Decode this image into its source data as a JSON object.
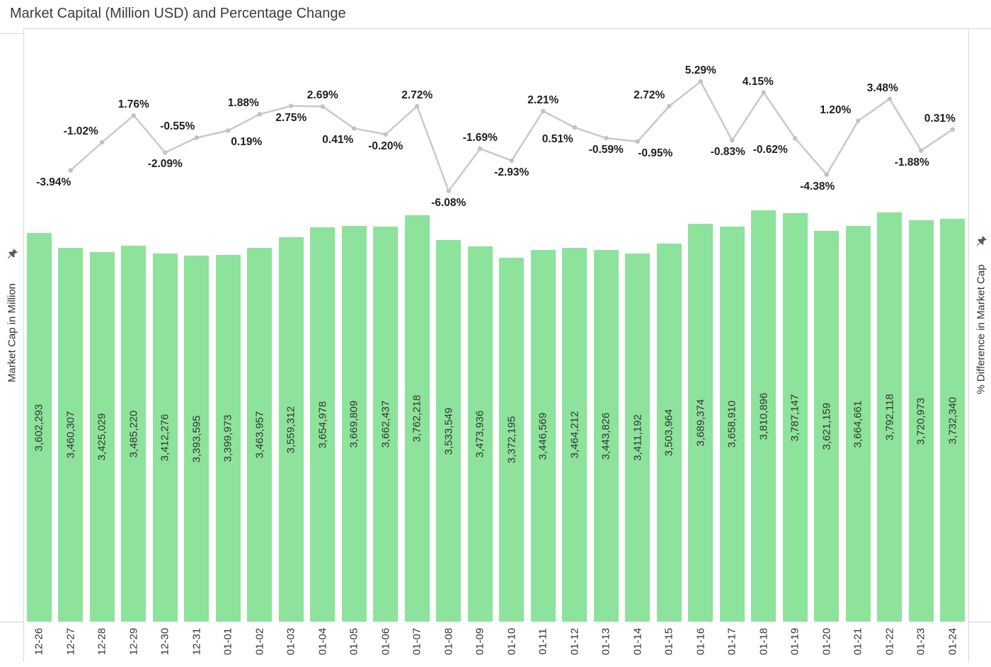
{
  "page_title": "Market Capital (Million USD) and Percentage Change",
  "left_axis": {
    "label": "Market Cap in Million",
    "icon": "pin-icon"
  },
  "right_axis": {
    "label": "% Difference in Market Cap",
    "icon": "pin-icon"
  },
  "colors": {
    "background": "#FFFFFF",
    "title_text": "#3B3B3B",
    "axis_text": "#333333",
    "border": "#D9D9D9",
    "bar_fill": "#8DE39B",
    "bar_label_text": "#333333",
    "line_stroke": "#C9C9C9",
    "marker_fill": "#C2C2C2",
    "pct_label_text": "#1F1F1F",
    "pin": "#4E5C6B"
  },
  "chart_data": {
    "type": "combo-bar-line",
    "title": "Market Capital (Million USD) and Percentage Change",
    "grid": false,
    "legend": "none",
    "left_axis_label": "Market Cap in Million",
    "right_axis_label": "% Difference in Market Cap",
    "bar_axis_min": 0,
    "categories": [
      "12-26",
      "12-27",
      "12-28",
      "12-29",
      "12-30",
      "12-31",
      "01-01",
      "01-02",
      "01-03",
      "01-04",
      "01-05",
      "01-06",
      "01-07",
      "01-08",
      "01-09",
      "01-10",
      "01-11",
      "01-12",
      "01-13",
      "01-14",
      "01-15",
      "01-16",
      "01-17",
      "01-18",
      "01-19",
      "01-20",
      "01-21",
      "01-22",
      "01-23",
      "01-24"
    ],
    "bar_series": {
      "name": "Market Cap in Million",
      "type": "bar",
      "values": [
        3602293,
        3460307,
        3425029,
        3485220,
        3412276,
        3393595,
        3399973,
        3463957,
        3559312,
        3654978,
        3669809,
        3662437,
        3762218,
        3533549,
        3473936,
        3372195,
        3446569,
        3464212,
        3443826,
        3411192,
        3503964,
        3689374,
        3658910,
        3810896,
        3787147,
        3621159,
        3664661,
        3792118,
        3720973,
        3732340
      ],
      "labels": [
        "3,602,293",
        "3,460,307",
        "3,425,029",
        "3,485,220",
        "3,412,276",
        "3,393,595",
        "3,399,973",
        "3,463,957",
        "3,559,312",
        "3,654,978",
        "3,669,809",
        "3,662,437",
        "3,762,218",
        "3,533,549",
        "3,473,936",
        "3,372,195",
        "3,446,569",
        "3,464,212",
        "3,443,826",
        "3,411,192",
        "3,503,964",
        "3,689,374",
        "3,658,910",
        "3,810,896",
        "3,787,147",
        "3,621,159",
        "3,664,661",
        "3,792,118",
        "3,720,973",
        "3,732,340"
      ]
    },
    "line_series": {
      "name": "% Difference in Market Cap",
      "type": "line",
      "start_category_index": 1,
      "values": [
        -3.94,
        -1.02,
        1.76,
        -2.09,
        -0.55,
        0.19,
        1.88,
        2.75,
        2.69,
        0.41,
        -0.2,
        2.72,
        -6.08,
        -1.69,
        -2.93,
        2.21,
        0.51,
        -0.59,
        -0.95,
        2.72,
        5.29,
        -0.83,
        4.15,
        -0.62,
        -4.38,
        1.2,
        3.48,
        -1.88,
        0.31
      ],
      "labels": [
        "-3.94%",
        "-1.02%",
        "1.76%",
        "-2.09%",
        "-0.55%",
        "0.19%",
        "1.88%",
        "2.75%",
        "2.69%",
        "0.41%",
        "-0.20%",
        "2.72%",
        "-6.08%",
        "-1.69%",
        "-2.93%",
        "2.21%",
        "0.51%",
        "-0.59%",
        "-0.95%",
        "2.72%",
        "5.29%",
        "-0.83%",
        "4.15%",
        "-0.62%",
        "-4.38%",
        "1.20%",
        "3.48%",
        "-1.88%",
        "0.31%"
      ],
      "label_side": [
        "below",
        "above",
        "above",
        "below",
        "above",
        "below",
        "above",
        "below",
        "above",
        "below",
        "below",
        "above",
        "below",
        "above",
        "below",
        "above",
        "below",
        "below",
        "below",
        "above",
        "above",
        "below",
        "above",
        "below",
        "below",
        "above",
        "above",
        "below",
        "above"
      ],
      "label_dx": [
        -24,
        -30,
        0,
        0,
        -27,
        26,
        -23,
        0,
        0,
        -23,
        0,
        0,
        0,
        0,
        0,
        0,
        -24,
        0,
        25,
        -28,
        0,
        -6,
        -8,
        -35,
        -13,
        -32,
        -10,
        -13,
        -18
      ]
    }
  }
}
